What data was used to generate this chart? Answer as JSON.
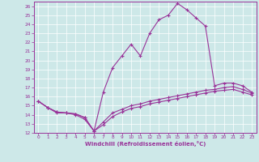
{
  "xlabel": "Windchill (Refroidissement éolien,°C)",
  "bg_color": "#cde8e8",
  "line_color": "#993399",
  "grid_color": "#ffffff",
  "xlim": [
    -0.5,
    23.5
  ],
  "ylim": [
    12,
    26.5
  ],
  "xticks": [
    0,
    1,
    2,
    3,
    4,
    5,
    6,
    7,
    8,
    9,
    10,
    11,
    12,
    13,
    14,
    15,
    16,
    17,
    18,
    19,
    20,
    21,
    22,
    23
  ],
  "yticks": [
    12,
    13,
    14,
    15,
    16,
    17,
    18,
    19,
    20,
    21,
    22,
    23,
    24,
    25,
    26
  ],
  "line1_x": [
    0,
    1,
    2,
    3,
    4,
    5,
    6,
    7,
    8,
    9,
    10,
    11,
    12,
    13,
    14,
    15,
    16,
    17,
    18,
    19,
    20,
    21,
    22,
    23
  ],
  "line1_y": [
    15.5,
    14.8,
    14.2,
    14.2,
    14.0,
    13.5,
    12.2,
    16.5,
    19.2,
    20.5,
    21.8,
    20.5,
    23.0,
    24.5,
    25.0,
    26.3,
    25.6,
    24.7,
    23.8,
    17.2,
    17.5,
    17.5,
    17.2,
    16.5
  ],
  "line2_x": [
    0,
    1,
    2,
    3,
    4,
    5,
    6,
    7,
    8,
    9,
    10,
    11,
    12,
    13,
    14,
    15,
    16,
    17,
    18,
    19,
    20,
    21,
    22,
    23
  ],
  "line2_y": [
    15.5,
    14.8,
    14.3,
    14.2,
    14.1,
    13.7,
    12.2,
    13.2,
    14.2,
    14.6,
    15.0,
    15.2,
    15.5,
    15.7,
    15.9,
    16.1,
    16.3,
    16.5,
    16.7,
    16.8,
    17.0,
    17.1,
    16.8,
    16.4
  ],
  "line3_x": [
    0,
    1,
    2,
    3,
    4,
    5,
    6,
    7,
    8,
    9,
    10,
    11,
    12,
    13,
    14,
    15,
    16,
    17,
    18,
    19,
    20,
    21,
    22,
    23
  ],
  "line3_y": [
    15.5,
    14.8,
    14.3,
    14.2,
    14.1,
    13.7,
    12.2,
    12.9,
    13.8,
    14.3,
    14.7,
    14.9,
    15.2,
    15.4,
    15.6,
    15.8,
    16.0,
    16.2,
    16.4,
    16.6,
    16.7,
    16.8,
    16.5,
    16.2
  ]
}
